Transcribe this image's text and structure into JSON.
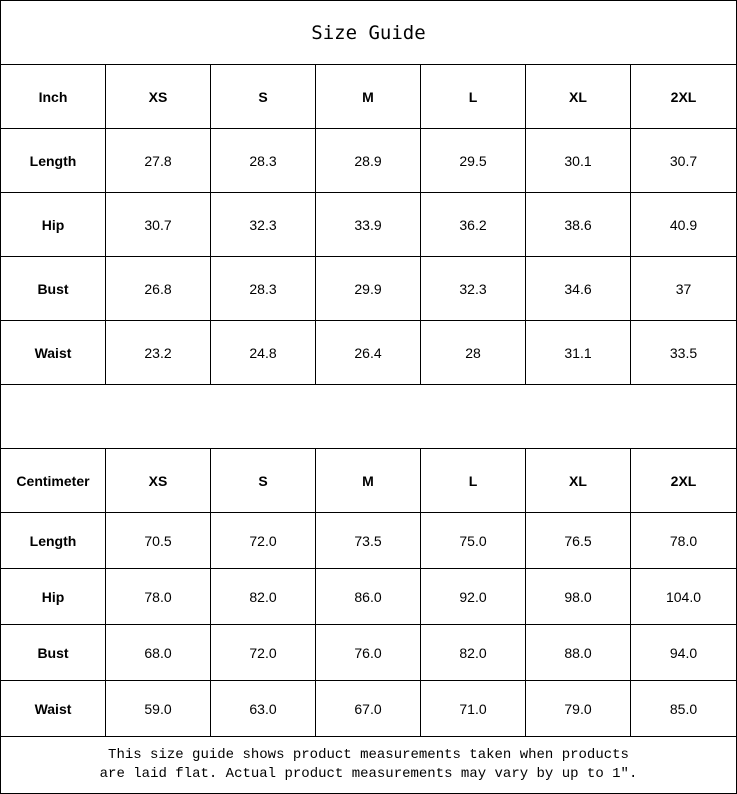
{
  "title": "Size Guide",
  "sizes": [
    "XS",
    "S",
    "M",
    "L",
    "XL",
    "2XL"
  ],
  "inch": {
    "unit_label": "Inch",
    "rows": [
      {
        "label": "Length",
        "values": [
          "27.8",
          "28.3",
          "28.9",
          "29.5",
          "30.1",
          "30.7"
        ]
      },
      {
        "label": "Hip",
        "values": [
          "30.7",
          "32.3",
          "33.9",
          "36.2",
          "38.6",
          "40.9"
        ]
      },
      {
        "label": "Bust",
        "values": [
          "26.8",
          "28.3",
          "29.9",
          "32.3",
          "34.6",
          "37"
        ]
      },
      {
        "label": "Waist",
        "values": [
          "23.2",
          "24.8",
          "26.4",
          "28",
          "31.1",
          "33.5"
        ]
      }
    ]
  },
  "centimeter": {
    "unit_label": "Centimeter",
    "rows": [
      {
        "label": "Length",
        "values": [
          "70.5",
          "72.0",
          "73.5",
          "75.0",
          "76.5",
          "78.0"
        ]
      },
      {
        "label": "Hip",
        "values": [
          "78.0",
          "82.0",
          "86.0",
          "92.0",
          "98.0",
          "104.0"
        ]
      },
      {
        "label": "Bust",
        "values": [
          "68.0",
          "72.0",
          "76.0",
          "82.0",
          "88.0",
          "94.0"
        ]
      },
      {
        "label": "Waist",
        "values": [
          "59.0",
          "63.0",
          "67.0",
          "71.0",
          "79.0",
          "85.0"
        ]
      }
    ]
  },
  "footer": {
    "line1": "This size guide shows product measurements taken when products",
    "line2": "are laid flat. Actual product measurements may vary by up to 1″."
  }
}
